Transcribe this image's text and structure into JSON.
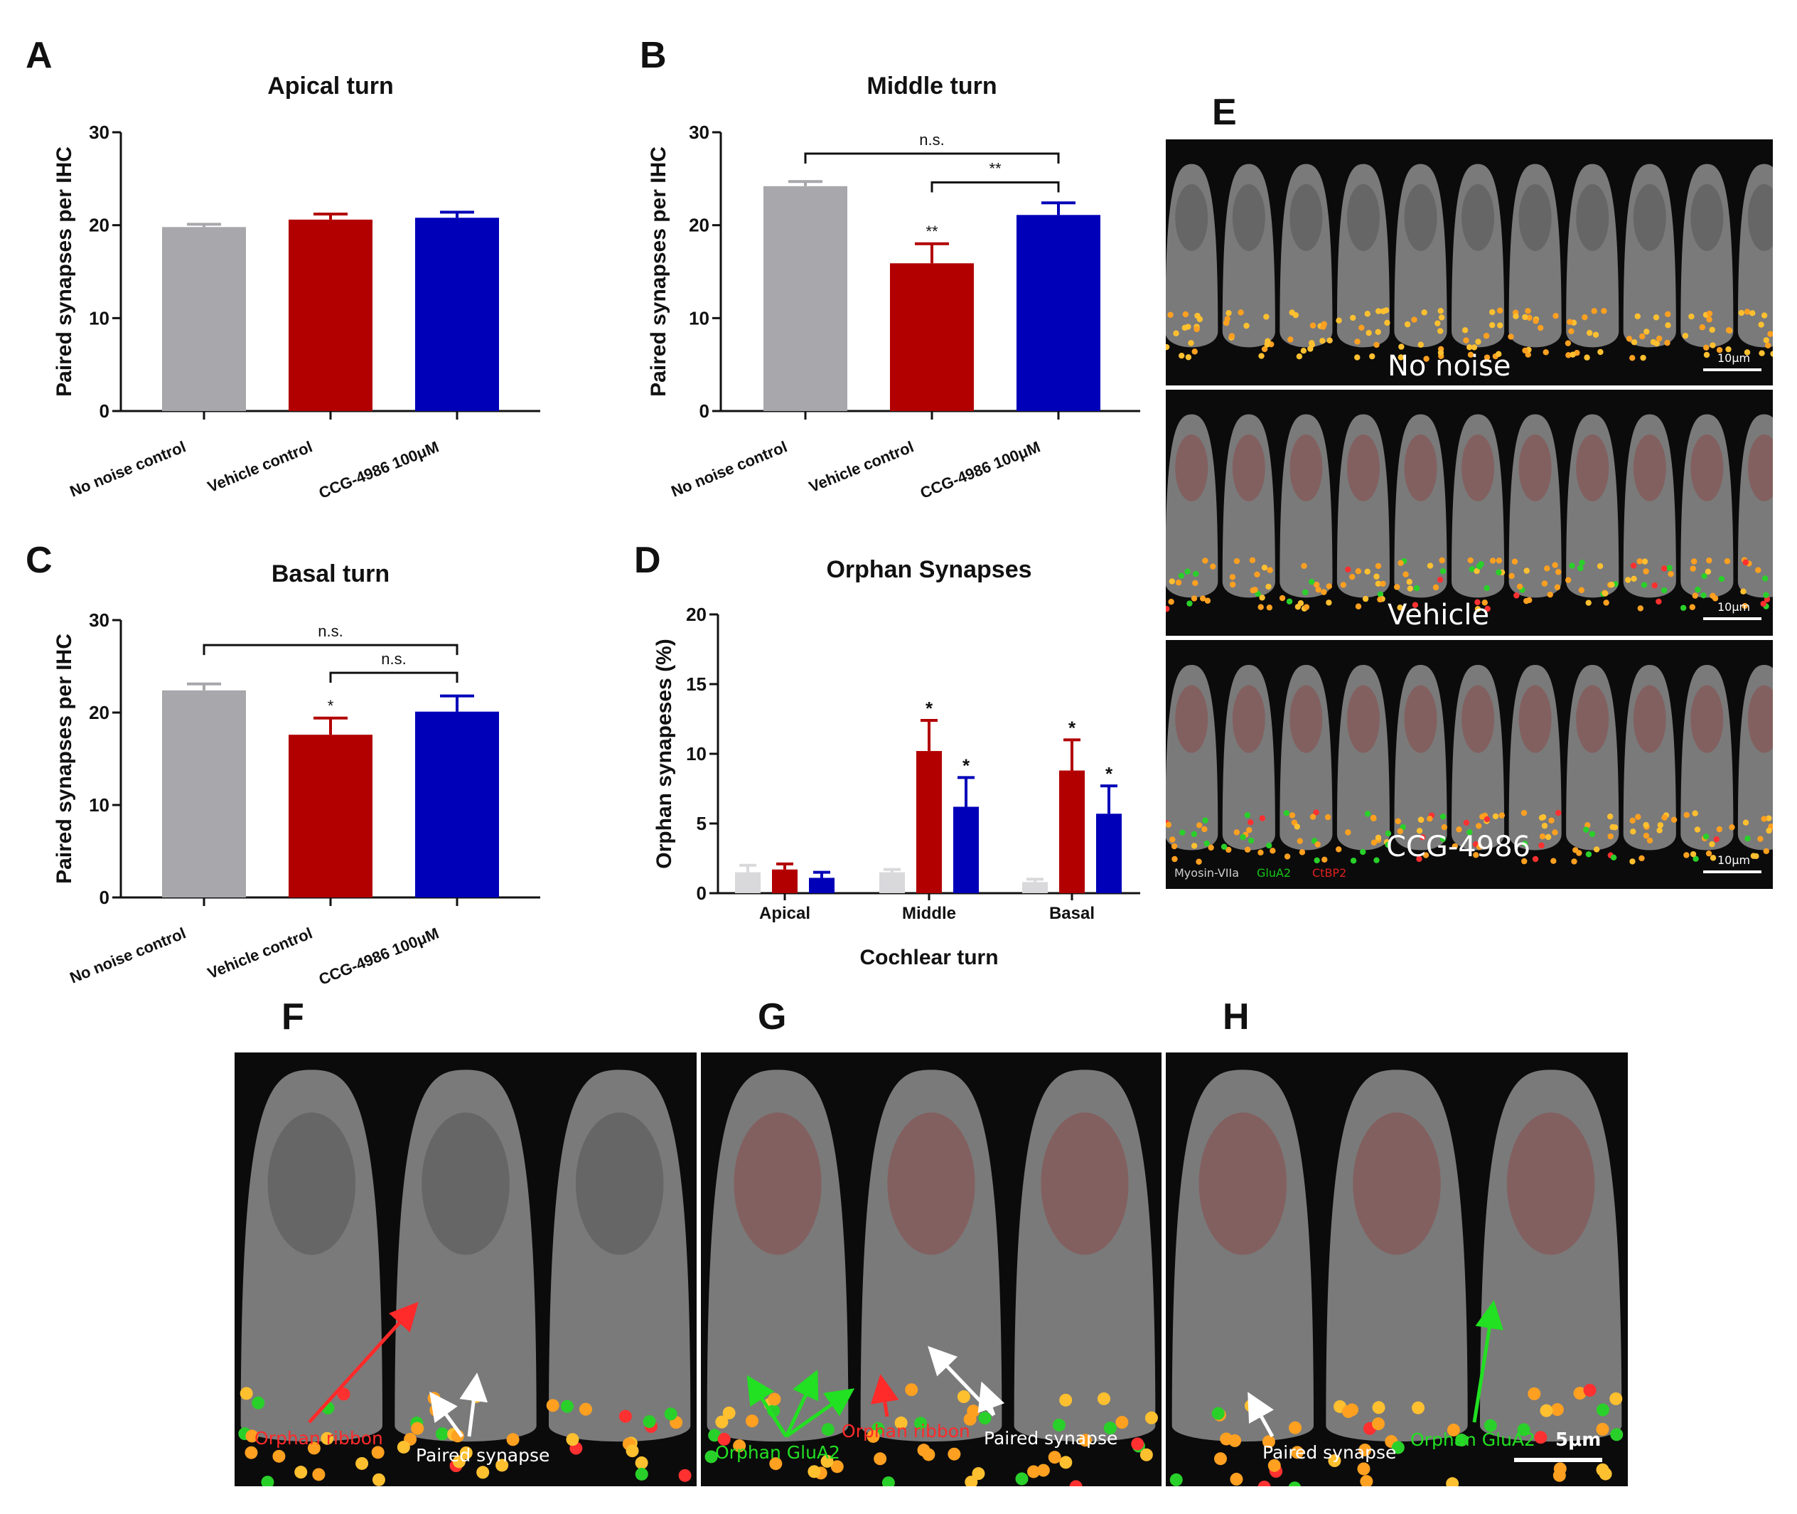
{
  "panels": {
    "A": "A",
    "B": "B",
    "C": "C",
    "D": "D",
    "E": "E",
    "F": "F",
    "G": "G",
    "H": "H"
  },
  "colors": {
    "no_noise": "#A7A7AC",
    "vehicle": "#B20000",
    "ccg": "#0000B8",
    "myosin": "#cfcfcf",
    "glua2": "#17c817",
    "ctbp2": "#e02020"
  },
  "chart_data": [
    {
      "panel": "A",
      "type": "bar",
      "title": "Apical turn",
      "ylabel": "Paired synapses per IHC",
      "xlabel": "",
      "categories": [
        "No noise control",
        "Vehicle control",
        "CCG-4986 100μM"
      ],
      "values": [
        19.8,
        20.6,
        20.8
      ],
      "errors": [
        0.3,
        0.6,
        0.6
      ],
      "yticks": [
        "0",
        "10",
        "20",
        "30"
      ],
      "ylim": [
        0,
        30
      ],
      "bar_annotations": [
        "",
        "",
        ""
      ],
      "comparisons": []
    },
    {
      "panel": "B",
      "type": "bar",
      "title": "Middle turn",
      "ylabel": "Paired synapses per IHC",
      "xlabel": "",
      "categories": [
        "No noise control",
        "Vehicle control",
        "CCG-4986 100μM"
      ],
      "values": [
        24.2,
        15.9,
        21.1
      ],
      "errors": [
        0.5,
        2.1,
        1.3
      ],
      "yticks": [
        "0",
        "10",
        "20",
        "30"
      ],
      "ylim": [
        0,
        30
      ],
      "bar_annotations": [
        "",
        "**",
        ""
      ],
      "comparisons": [
        {
          "from": 0,
          "to": 2,
          "label": "n.s.",
          "y": 27.7
        },
        {
          "from": 1,
          "to": 2,
          "label": "**",
          "y": 24.6
        }
      ]
    },
    {
      "panel": "C",
      "type": "bar",
      "title": "Basal turn",
      "ylabel": "Paired synapses per IHC",
      "xlabel": "",
      "categories": [
        "No noise control",
        "Vehicle control",
        "CCG-4986 100μM"
      ],
      "values": [
        22.4,
        17.6,
        20.1
      ],
      "errors": [
        0.7,
        1.8,
        1.7
      ],
      "yticks": [
        "0",
        "10",
        "20",
        "30"
      ],
      "ylim": [
        0,
        30
      ],
      "bar_annotations": [
        "",
        "*",
        ""
      ],
      "comparisons": [
        {
          "from": 0,
          "to": 2,
          "label": "n.s.",
          "y": 27.3
        },
        {
          "from": 1,
          "to": 2,
          "label": "n.s.",
          "y": 24.3
        }
      ]
    },
    {
      "panel": "D",
      "type": "bar",
      "title": "Orphan Synapses",
      "ylabel": "Orphan synapeses (%)",
      "xlabel": "Cochlear turn",
      "categories": [
        "Apical",
        "Middle",
        "Basal"
      ],
      "series": [
        {
          "name": "No noise control",
          "values": [
            1.5,
            1.5,
            0.8
          ],
          "errors": [
            0.5,
            0.2,
            0.2
          ],
          "annotations": [
            "",
            "",
            ""
          ]
        },
        {
          "name": "Vehicle control",
          "values": [
            1.7,
            10.2,
            8.8
          ],
          "errors": [
            0.4,
            2.2,
            2.2
          ],
          "annotations": [
            "",
            "*",
            "*"
          ]
        },
        {
          "name": "CCG-4986 100μM",
          "values": [
            1.1,
            6.2,
            5.7
          ],
          "errors": [
            0.4,
            2.1,
            2.0
          ],
          "annotations": [
            "",
            "*",
            "*"
          ]
        }
      ],
      "yticks": [
        "0",
        "5",
        "10",
        "15",
        "20"
      ],
      "ylim": [
        0,
        20
      ]
    }
  ],
  "micrographs": {
    "E": {
      "rows": [
        {
          "condition": "No noise",
          "scale": "10μm"
        },
        {
          "condition": "Vehicle",
          "scale": "10μm"
        },
        {
          "condition": "CCG-4986",
          "scale": "10μm"
        }
      ],
      "legend": {
        "myosin": "Myosin-VIIa",
        "glua2": "GluA2",
        "ctbp2": "CtBP2"
      }
    },
    "F": {
      "labels": {
        "orphan_ribbon": "Orphan ribbon",
        "paired": "Paired synapse"
      }
    },
    "G": {
      "labels": {
        "orphan_glua2": "Orphan GluA2",
        "orphan_ribbon": "Orphan ribbon",
        "paired": "Paired synapse"
      }
    },
    "H": {
      "labels": {
        "paired": "Paired synapse",
        "orphan_glua2": "Orphan GluA2"
      },
      "scale": "5μm"
    }
  }
}
